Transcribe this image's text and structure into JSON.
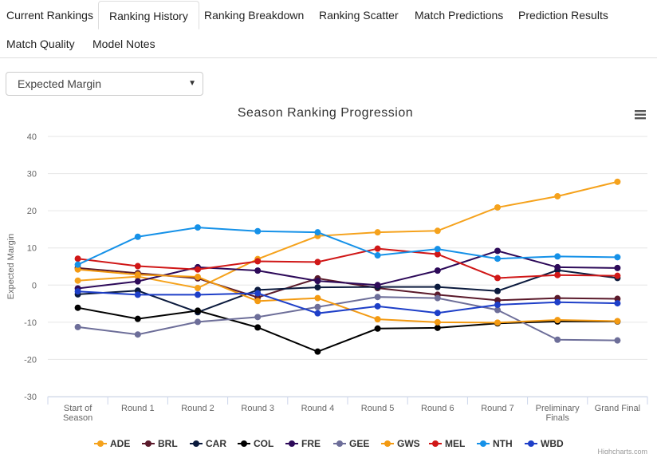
{
  "tabs": [
    "Current Rankings",
    "Ranking History",
    "Ranking Breakdown",
    "Ranking Scatter",
    "Match Predictions",
    "Prediction Results",
    "Match Quality",
    "Model Notes"
  ],
  "active_tab": 1,
  "dropdown": {
    "selected": "Expected Margin"
  },
  "credits": "Highcharts.com",
  "chart_data": {
    "type": "line",
    "title": "Season Ranking Progression",
    "y_label": "Expected Margin",
    "categories": [
      "Start of Season",
      "Round 1",
      "Round 2",
      "Round 3",
      "Round 4",
      "Round 5",
      "Round 6",
      "Round 7",
      "Preliminary Finals",
      "Grand Final"
    ],
    "ylim": [
      -30,
      40
    ],
    "yticks": [
      -30,
      -20,
      -10,
      0,
      10,
      20,
      30,
      40
    ],
    "grid": true,
    "legend": "bottom",
    "series": [
      {
        "name": "ADE",
        "color": "#f5a21c",
        "values": [
          1.2,
          2.3,
          -0.8,
          7.0,
          13.2,
          14.2,
          14.6,
          20.9,
          23.9,
          27.8
        ]
      },
      {
        "name": "BRL",
        "color": "#5a1a2b",
        "values": [
          4.6,
          3.2,
          1.8,
          -3.3,
          1.8,
          -0.8,
          -2.6,
          -4.1,
          -3.5,
          -3.7
        ]
      },
      {
        "name": "CAR",
        "color": "#0b1a3d",
        "values": [
          -2.5,
          -1.5,
          -7.3,
          -1.3,
          -0.6,
          -0.5,
          -0.5,
          -1.6,
          4.0,
          1.9
        ]
      },
      {
        "name": "COL",
        "color": "#000000",
        "values": [
          -6.1,
          -9.1,
          -6.9,
          -11.4,
          -17.9,
          -11.7,
          -11.5,
          -10.3,
          -9.8,
          -9.8
        ]
      },
      {
        "name": "FRE",
        "color": "#2d0a59",
        "values": [
          -0.9,
          1.0,
          4.8,
          3.9,
          1.1,
          0.0,
          3.9,
          9.2,
          4.8,
          4.6
        ]
      },
      {
        "name": "GEE",
        "color": "#6d6e99",
        "values": [
          -11.3,
          -13.3,
          -9.9,
          -8.6,
          -5.9,
          -3.2,
          -3.5,
          -6.7,
          -14.7,
          -14.9
        ]
      },
      {
        "name": "GWS",
        "color": "#f39a12",
        "values": [
          4.2,
          2.8,
          2.2,
          -4.3,
          -3.5,
          -9.2,
          -10.0,
          -10.1,
          -9.4,
          -9.7
        ]
      },
      {
        "name": "MEL",
        "color": "#d01717",
        "values": [
          7.1,
          5.1,
          4.2,
          6.4,
          6.2,
          9.8,
          8.3,
          1.9,
          2.7,
          2.5
        ]
      },
      {
        "name": "NTH",
        "color": "#1591e8",
        "values": [
          5.5,
          13.0,
          15.5,
          14.5,
          14.2,
          8.0,
          9.7,
          7.1,
          7.7,
          7.5
        ]
      },
      {
        "name": "WBD",
        "color": "#1e3fc8",
        "values": [
          -1.7,
          -2.6,
          -2.6,
          -2.2,
          -7.6,
          -5.7,
          -7.5,
          -5.3,
          -4.6,
          -4.9
        ]
      }
    ]
  }
}
